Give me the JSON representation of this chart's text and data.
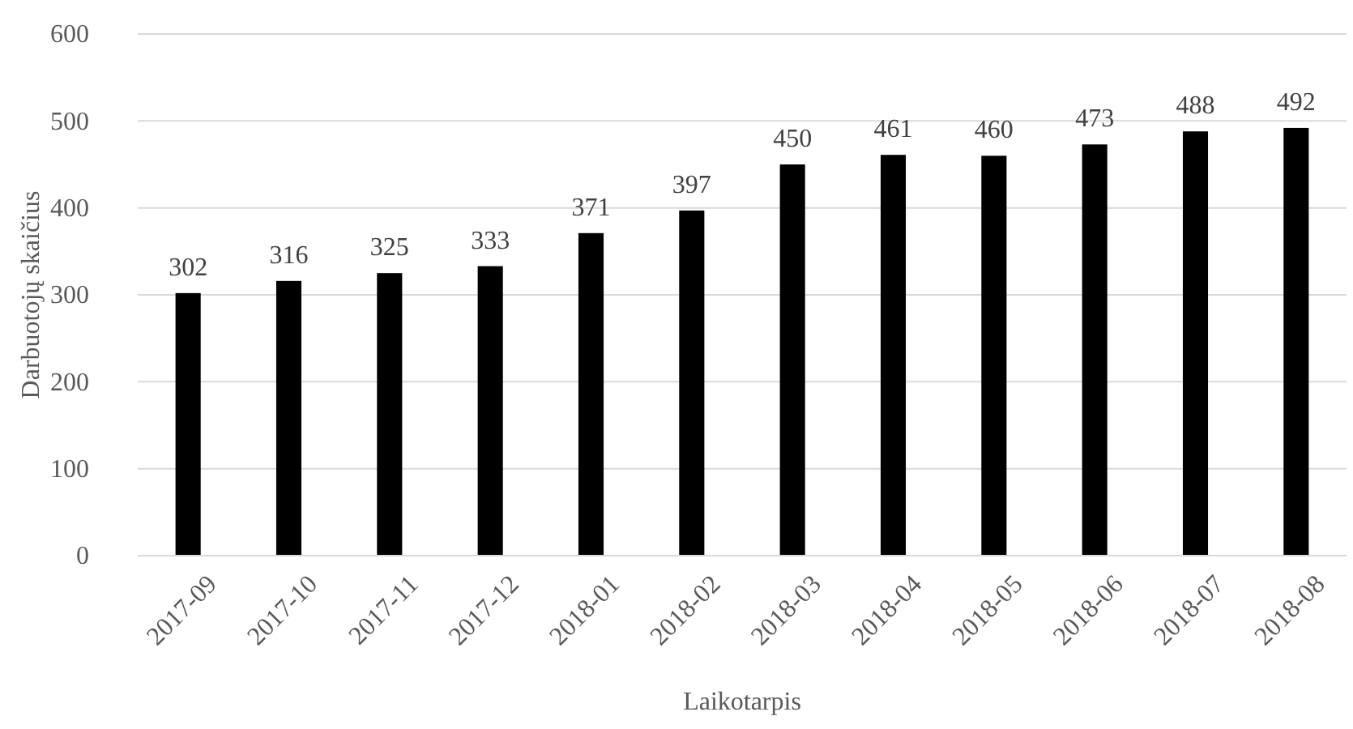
{
  "chart_data": {
    "type": "bar",
    "xlabel": "Laikotarpis",
    "ylabel": "Darbuotojų skaičius",
    "categories": [
      "2017-09",
      "2017-10",
      "2017-11",
      "2017-12",
      "2018-01",
      "2018-02",
      "2018-03",
      "2018-04",
      "2018-05",
      "2018-06",
      "2018-07",
      "2018-08"
    ],
    "values": [
      302,
      316,
      325,
      333,
      371,
      397,
      450,
      461,
      460,
      473,
      488,
      492
    ],
    "color": "#000000",
    "ylim": [
      0,
      600
    ],
    "yticks": [
      0,
      100,
      200,
      300,
      400,
      500,
      600
    ],
    "grid": "y",
    "data_labels": true
  }
}
